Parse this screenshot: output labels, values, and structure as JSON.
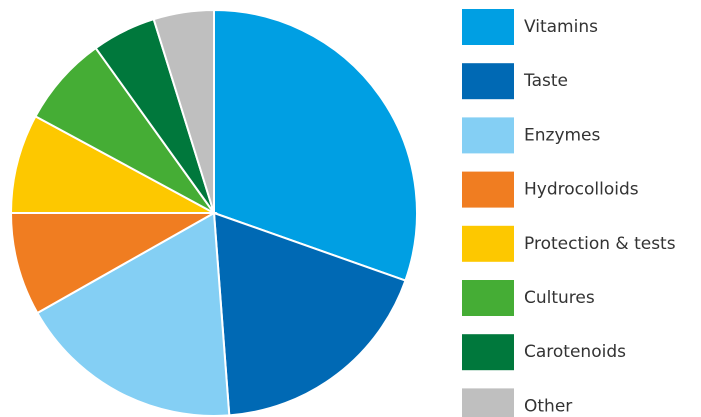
{
  "chart_data": {
    "type": "pie",
    "categories": [
      "Vitamins",
      "Taste",
      "Enzymes",
      "Hydrocolloids",
      "Protection & tests",
      "Cultures",
      "Carotenoids",
      "Other"
    ],
    "values": [
      30.4,
      18.4,
      18,
      8.2,
      7.9,
      7.2,
      5.1,
      4.8
    ],
    "colors": [
      "#009fe3",
      "#0069b4",
      "#84cff4",
      "#f07d21",
      "#fdc800",
      "#45ad35",
      "#00783c",
      "#bfbfbf"
    ],
    "legend": "right"
  }
}
